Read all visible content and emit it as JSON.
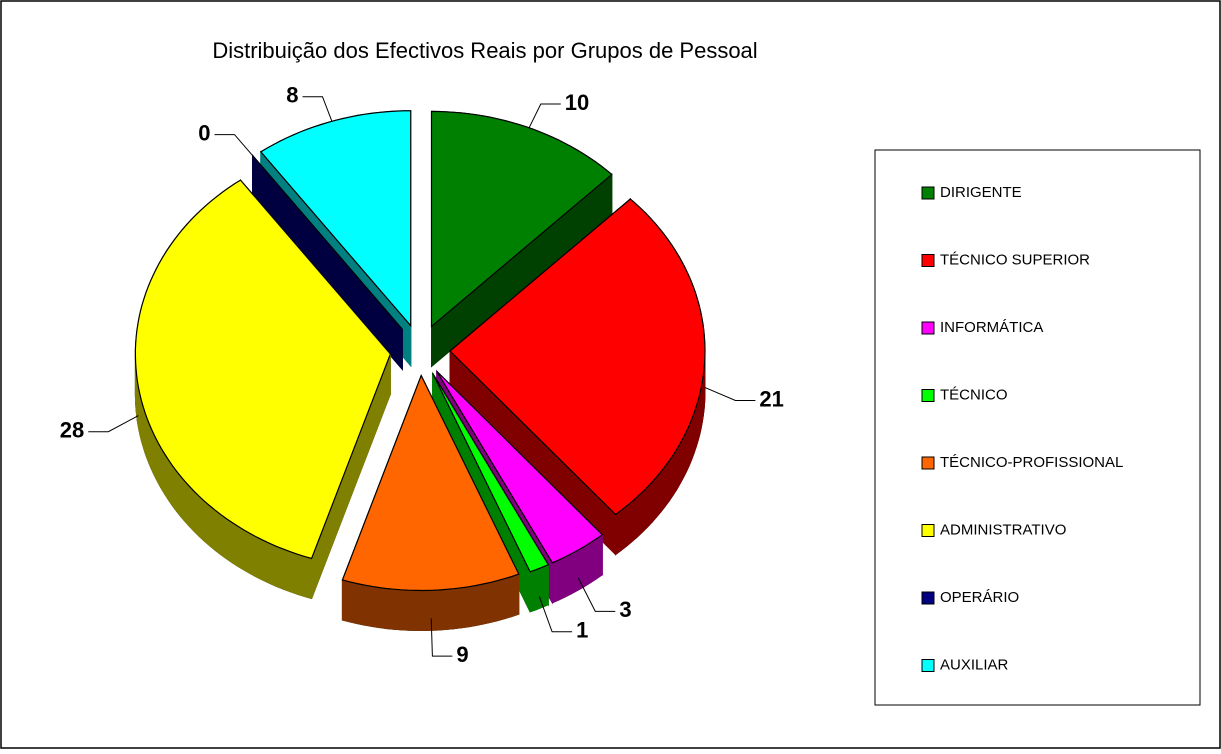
{
  "chart_data": {
    "type": "pie",
    "title": "Distribuição dos Efectivos Reais por Grupos de Pessoal",
    "categories": [
      "DIRIGENTE",
      "TÉCNICO SUPERIOR",
      "INFORMÁTICA",
      "TÉCNICO",
      "TÉCNICO-PROFISSIONAL",
      "ADMINISTRATIVO",
      "OPERÁRIO",
      "AUXILIAR"
    ],
    "values": [
      10,
      21,
      3,
      1,
      9,
      28,
      0,
      8
    ],
    "colors": [
      "#008000",
      "#ff0000",
      "#ff00ff",
      "#00ff00",
      "#ff6600",
      "#ffff00",
      "#000080",
      "#00ffff"
    ],
    "legend": "right"
  }
}
